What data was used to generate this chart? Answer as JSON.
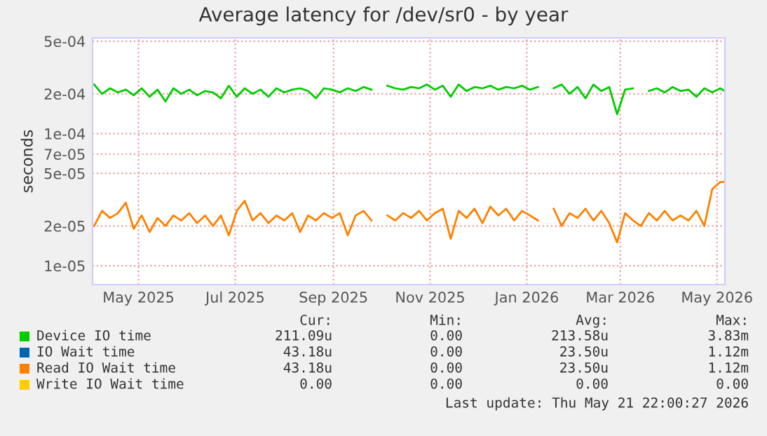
{
  "chart_data": {
    "type": "line",
    "title": "Average latency for /dev/sr0 - by year",
    "ylabel": "seconds",
    "log": "y",
    "grid": true,
    "legend": "bottom",
    "ylim": [
      7.2e-06,
      0.00053
    ],
    "yticks": [
      {
        "value": 1e-05,
        "label": "1e-05"
      },
      {
        "value": 2e-05,
        "label": "2e-05"
      },
      {
        "value": 5e-05,
        "label": "5e-05"
      },
      {
        "value": 7e-05,
        "label": "7e-05"
      },
      {
        "value": 0.0001,
        "label": "1e-04"
      },
      {
        "value": 0.0002,
        "label": "2e-04"
      },
      {
        "value": 0.0005,
        "label": "5e-04"
      }
    ],
    "xlim": [
      "2025-04-17",
      "2026-05-21"
    ],
    "xticks": [
      {
        "value": "2025-05-16",
        "label": "May 2025"
      },
      {
        "value": "2025-07-16",
        "label": "Jul 2025"
      },
      {
        "value": "2025-09-16",
        "label": "Sep 2025"
      },
      {
        "value": "2025-11-16",
        "label": "Nov 2025"
      },
      {
        "value": "2026-01-16",
        "label": "Jan 2026"
      },
      {
        "value": "2026-03-16",
        "label": "Mar 2026"
      },
      {
        "value": "2026-05-16",
        "label": "May 2026"
      }
    ],
    "x": [
      "2025-04-18",
      "2025-04-23",
      "2025-04-28",
      "2025-05-03",
      "2025-05-08",
      "2025-05-13",
      "2025-05-18",
      "2025-05-23",
      "2025-05-28",
      "2025-06-02",
      "2025-06-07",
      "2025-06-12",
      "2025-06-17",
      "2025-06-22",
      "2025-06-27",
      "2025-07-02",
      "2025-07-07",
      "2025-07-12",
      "2025-07-17",
      "2025-07-22",
      "2025-07-27",
      "2025-08-01",
      "2025-08-06",
      "2025-08-11",
      "2025-08-16",
      "2025-08-21",
      "2025-08-26",
      "2025-08-31",
      "2025-09-05",
      "2025-09-10",
      "2025-09-15",
      "2025-09-20",
      "2025-09-25",
      "2025-09-30",
      "2025-10-05",
      "2025-10-10",
      "2025-10-15",
      "2025-10-20",
      "2025-10-25",
      "2025-10-30",
      "2025-11-04",
      "2025-11-09",
      "2025-11-14",
      "2025-11-19",
      "2025-11-24",
      "2025-11-29",
      "2025-12-04",
      "2025-12-09",
      "2025-12-14",
      "2025-12-19",
      "2025-12-24",
      "2025-12-29",
      "2026-01-03",
      "2026-01-08",
      "2026-01-13",
      "2026-01-18",
      "2026-01-23",
      "2026-01-28",
      "2026-02-02",
      "2026-02-07",
      "2026-02-12",
      "2026-02-17",
      "2026-02-22",
      "2026-02-27",
      "2026-03-04",
      "2026-03-09",
      "2026-03-14",
      "2026-03-19",
      "2026-03-24",
      "2026-03-29",
      "2026-04-03",
      "2026-04-08",
      "2026-04-13",
      "2026-04-18",
      "2026-04-23",
      "2026-04-28",
      "2026-05-03",
      "2026-05-08",
      "2026-05-13",
      "2026-05-18",
      "2026-05-21"
    ],
    "series": [
      {
        "name": "Device IO time",
        "color": "#00cc00",
        "values": [
          0.000235,
          0.0002,
          0.00022,
          0.000205,
          0.000215,
          0.000195,
          0.00022,
          0.00019,
          0.000215,
          0.000175,
          0.00022,
          0.0002,
          0.000215,
          0.000195,
          0.00021,
          0.000205,
          0.000185,
          0.00023,
          0.00019,
          0.00022,
          0.0002,
          0.000215,
          0.00019,
          0.00022,
          0.000205,
          0.000215,
          0.00022,
          0.00021,
          0.000185,
          0.00022,
          0.000215,
          0.000205,
          0.00022,
          0.00021,
          0.000225,
          0.000215,
          null,
          0.00023,
          0.00022,
          0.000215,
          0.000225,
          0.00022,
          0.000235,
          0.000215,
          0.00023,
          0.00019,
          0.000235,
          0.00021,
          0.000225,
          0.00022,
          0.00023,
          0.000215,
          0.000225,
          0.00022,
          0.00023,
          0.000215,
          0.000225,
          null,
          0.00022,
          0.000235,
          0.0002,
          0.000225,
          0.000185,
          0.000235,
          0.00021,
          0.000225,
          0.00014,
          0.000215,
          0.00022,
          null,
          0.00021,
          0.00022,
          0.000205,
          0.000225,
          0.00021,
          0.000215,
          0.00019,
          0.00022,
          0.000205,
          0.00022,
          0.00021
        ]
      },
      {
        "name": "IO Wait time",
        "color": "#0066b3",
        "values": [
          null,
          null,
          null,
          null,
          null,
          null,
          null,
          null,
          null,
          null,
          null,
          null,
          null,
          null,
          null,
          null,
          null,
          null,
          null,
          null,
          null,
          null,
          null,
          null,
          null,
          null,
          null,
          null,
          null,
          null,
          null,
          null,
          null,
          null,
          null,
          null,
          null,
          null,
          null,
          null,
          null,
          null,
          null,
          null,
          null,
          null,
          null,
          null,
          null,
          null,
          null,
          null,
          null,
          null,
          null,
          null,
          null,
          null,
          null,
          null,
          null,
          null,
          null,
          null,
          null,
          null,
          null,
          null,
          null,
          null,
          null,
          null,
          null,
          null,
          null,
          null,
          null,
          null,
          null,
          null,
          null
        ]
      },
      {
        "name": "Read IO Wait time",
        "color": "#ff8000",
        "values": [
          2e-05,
          2.6e-05,
          2.3e-05,
          2.5e-05,
          3e-05,
          1.9e-05,
          2.4e-05,
          1.8e-05,
          2.3e-05,
          2e-05,
          2.4e-05,
          2.2e-05,
          2.5e-05,
          2.1e-05,
          2.4e-05,
          2e-05,
          2.4e-05,
          1.7e-05,
          2.6e-05,
          3.1e-05,
          2.2e-05,
          2.5e-05,
          2.1e-05,
          2.4e-05,
          2.2e-05,
          2.5e-05,
          1.8e-05,
          2.4e-05,
          2.2e-05,
          2.5e-05,
          2.3e-05,
          2.5e-05,
          1.7e-05,
          2.4e-05,
          2.6e-05,
          2.2e-05,
          null,
          2.4e-05,
          2.2e-05,
          2.5e-05,
          2.3e-05,
          2.6e-05,
          2.2e-05,
          2.5e-05,
          2.7e-05,
          1.6e-05,
          2.6e-05,
          2.3e-05,
          2.7e-05,
          2.1e-05,
          2.8e-05,
          2.4e-05,
          2.7e-05,
          2.2e-05,
          2.6e-05,
          2.4e-05,
          2.2e-05,
          null,
          2.7e-05,
          2e-05,
          2.5e-05,
          2.3e-05,
          2.7e-05,
          2.2e-05,
          2.6e-05,
          2.1e-05,
          1.5e-05,
          2.5e-05,
          2.2e-05,
          2e-05,
          2.5e-05,
          2.2e-05,
          2.6e-05,
          2.2e-05,
          2.4e-05,
          2.2e-05,
          2.6e-05,
          2e-05,
          3.8e-05,
          4.3e-05,
          4.3e-05
        ]
      },
      {
        "name": "Write IO Wait time",
        "color": "#ffcc00",
        "values": [
          null,
          null,
          null,
          null,
          null,
          null,
          null,
          null,
          null,
          null,
          null,
          null,
          null,
          null,
          null,
          null,
          null,
          null,
          null,
          null,
          null,
          null,
          null,
          null,
          null,
          null,
          null,
          null,
          null,
          null,
          null,
          null,
          null,
          null,
          null,
          null,
          null,
          null,
          null,
          null,
          null,
          null,
          null,
          null,
          null,
          null,
          null,
          null,
          null,
          null,
          null,
          null,
          null,
          null,
          null,
          null,
          null,
          null,
          null,
          null,
          null,
          null,
          null,
          null,
          null,
          null,
          null,
          null,
          null,
          null,
          null,
          null,
          null,
          null,
          null,
          null,
          null,
          null,
          null,
          null,
          null
        ]
      }
    ],
    "annotations": [
      "Cur:",
      "Min:",
      "Avg:",
      "Max:",
      "211.09u",
      "0.00",
      "213.58u",
      "3.83m",
      "43.18u",
      "0.00",
      "23.50u",
      "1.12m",
      "43.18u",
      "0.00",
      "23.50u",
      "1.12m",
      "0.00",
      "0.00",
      "0.00",
      "0.00",
      "Last update: Thu May 21 22:00:27 2026"
    ]
  }
}
